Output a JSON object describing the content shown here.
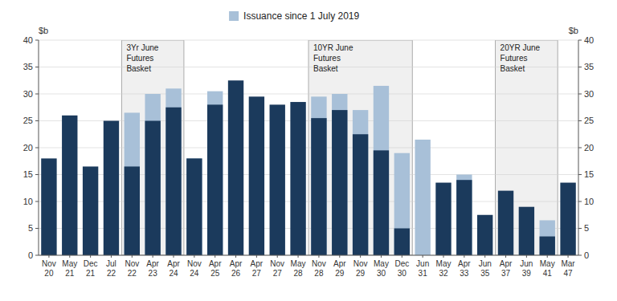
{
  "chart_data": {
    "type": "bar",
    "stacked": false,
    "categories": [
      "Nov 20",
      "May 21",
      "Dec 21",
      "Jul 22",
      "Nov 22",
      "Apr 23",
      "Apr 24",
      "Nov 24",
      "Apr 25",
      "Apr 26",
      "Apr 27",
      "Nov 27",
      "May 28",
      "Nov 28",
      "Apr 29",
      "Nov 29",
      "May 30",
      "Dec 30",
      "Jun 31",
      "May 32",
      "Apr 33",
      "Jun 35",
      "Apr 37",
      "Jun 39",
      "May 41",
      "Mar 47"
    ],
    "series": [
      {
        "name": "Issuance since 1 July 2019",
        "color": "#a8c0d8",
        "values": [
          0,
          0,
          0,
          0,
          26.5,
          30,
          31,
          18,
          30.5,
          0,
          0,
          0,
          0,
          29.5,
          30,
          27,
          31.5,
          19,
          21.5,
          0,
          15,
          0,
          0,
          0,
          6.5,
          0
        ]
      },
      {
        "color": "#1b3a5c",
        "values": [
          18,
          26,
          16.5,
          25,
          16.5,
          25,
          27.5,
          18,
          28,
          32.5,
          29.5,
          28,
          28.5,
          25.5,
          27,
          22.5,
          19.5,
          5,
          0,
          13.5,
          14,
          7.5,
          12,
          9,
          3.5,
          13.5
        ]
      }
    ],
    "ylabel": "$b",
    "y2label": "$b",
    "ylim": [
      0,
      40
    ],
    "yticks": [
      0,
      5,
      10,
      15,
      20,
      25,
      30,
      35,
      40
    ],
    "y2lim": [
      0,
      40
    ],
    "y2ticks": [
      0,
      5,
      10,
      15,
      20,
      25,
      30,
      35,
      40
    ],
    "grid": true,
    "legend": "top",
    "annotations": [
      {
        "label": "3Yr June\nFutures\nBasket",
        "from": "Nov 22",
        "to": "Apr 24"
      },
      {
        "label": "10YR June\nFutures\nBasket",
        "from": "Nov 28",
        "to": "Dec 30"
      },
      {
        "label": "20YR June\nFutures\nBasket",
        "from": "Apr 37",
        "to": "May 41"
      }
    ]
  }
}
